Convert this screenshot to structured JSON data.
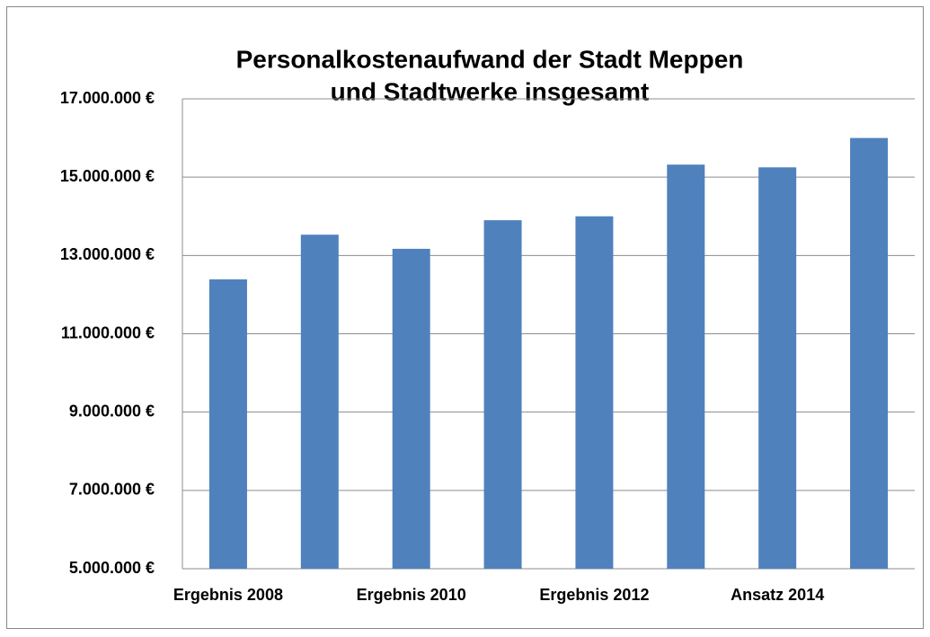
{
  "chart_data": {
    "type": "bar",
    "title": [
      "Personalkostenaufwand  der Stadt Meppen",
      "und Stadtwerke insgesamt"
    ],
    "categories": [
      "Ergebnis 2008",
      null,
      "Ergebnis 2010",
      null,
      "Ergebnis 2012",
      null,
      "Ansatz 2014",
      null
    ],
    "values": [
      12390000,
      13530000,
      13170000,
      13900000,
      14000000,
      15320000,
      15250000,
      16000000
    ],
    "color": "#4f81bd",
    "ylim": [
      5000000,
      17000000
    ],
    "yticks": [
      {
        "value": 5000000,
        "label": "5.000.000 €"
      },
      {
        "value": 7000000,
        "label": "7.000.000 €"
      },
      {
        "value": 9000000,
        "label": "9.000.000 €"
      },
      {
        "value": 11000000,
        "label": "11.000.000 €"
      },
      {
        "value": 13000000,
        "label": "13.000.000 €"
      },
      {
        "value": 15000000,
        "label": "15.000.000 €"
      },
      {
        "value": 17000000,
        "label": "17.000.000 €"
      }
    ],
    "grid": true
  }
}
